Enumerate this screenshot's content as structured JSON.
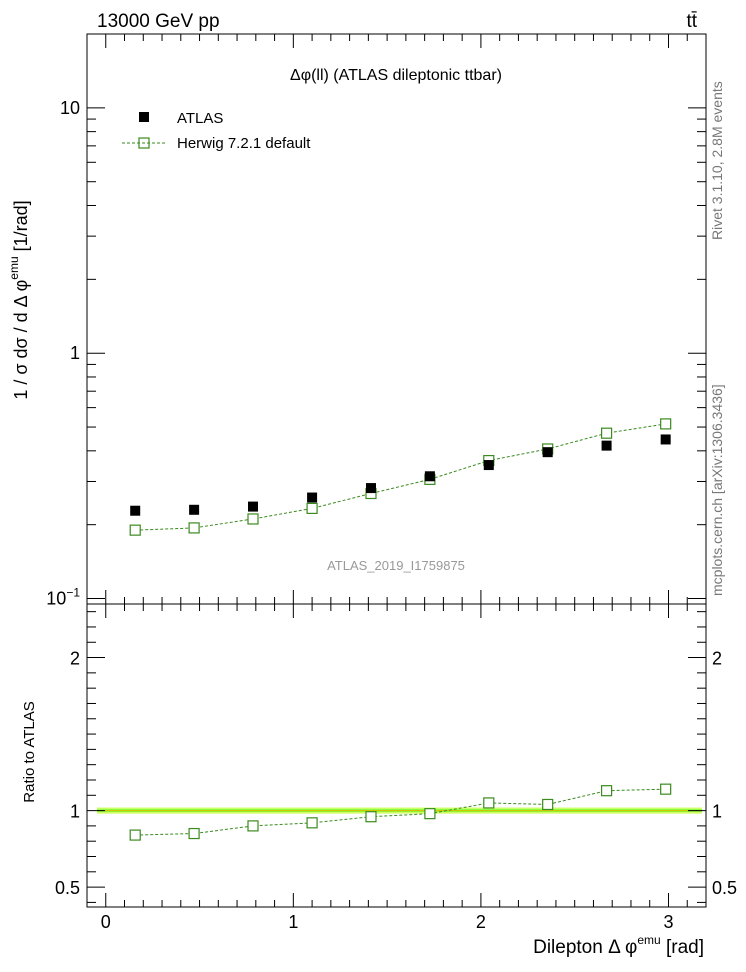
{
  "header": {
    "energy_label": "13000 GeV pp",
    "process_label": "tt̄"
  },
  "side_labels": {
    "rivet": "Rivet 3.1.10, 2.8M events",
    "mcplots": "mcplots.cern.ch [arXiv:1306.3436]"
  },
  "chart_data": [
    {
      "type": "scatter",
      "title": "Δφ(ll) (ATLAS dileptonic ttbar)",
      "watermark": "ATLAS_2019_I1759875",
      "ylabel": {
        "main": "1 / σ  dσ / d Δ φ",
        "sup": "emu",
        "unit": " [1/rad]"
      },
      "yscale": "log",
      "ylim": [
        0.095,
        20
      ],
      "xlim": [
        -0.1,
        3.2
      ],
      "yticks": [
        {
          "value": 0.1,
          "label": "10",
          "sup": "−1"
        },
        {
          "value": 1,
          "label": "1",
          "sup": ""
        },
        {
          "value": 10,
          "label": "10",
          "sup": ""
        }
      ],
      "legend_placement": "top-left",
      "series": [
        {
          "name": "ATLAS",
          "marker": "filled-square",
          "color": "#000000",
          "x": [
            0.157,
            0.471,
            0.785,
            1.1,
            1.414,
            1.728,
            2.042,
            2.356,
            2.67,
            2.985
          ],
          "y": [
            0.228,
            0.23,
            0.237,
            0.258,
            0.282,
            0.315,
            0.35,
            0.395,
            0.42,
            0.445
          ]
        },
        {
          "name": "Herwig 7.2.1 default",
          "marker": "open-square",
          "line": "dashed",
          "color": "#3a8a1e",
          "x": [
            0.157,
            0.471,
            0.785,
            1.1,
            1.414,
            1.728,
            2.042,
            2.356,
            2.67,
            2.985
          ],
          "y": [
            0.19,
            0.194,
            0.211,
            0.233,
            0.268,
            0.306,
            0.365,
            0.407,
            0.472,
            0.515
          ]
        }
      ]
    },
    {
      "type": "scatter",
      "xlabel": {
        "main": "Dilepton Δ φ",
        "sup": "emu",
        "unit": " [rad]"
      },
      "ylabel": "Ratio to ATLAS",
      "ylim": [
        0.37,
        2.35
      ],
      "xlim": [
        -0.1,
        3.2
      ],
      "xticks": [
        0,
        1,
        2,
        3
      ],
      "yticks": [
        {
          "value": 0.5,
          "label": "0.5"
        },
        {
          "value": 1,
          "label": "1"
        },
        {
          "value": 2,
          "label": "2"
        }
      ],
      "reference_band": {
        "color": "#ccff66",
        "inner_color": "#66ff33"
      },
      "series": [
        {
          "name": "Herwig 7.2.1 default",
          "marker": "open-square",
          "line": "dashed",
          "color": "#3a8a1e",
          "x": [
            0.157,
            0.471,
            0.785,
            1.1,
            1.414,
            1.728,
            2.042,
            2.356,
            2.67,
            2.985
          ],
          "y": [
            0.84,
            0.85,
            0.9,
            0.92,
            0.96,
            0.98,
            1.05,
            1.04,
            1.13,
            1.14
          ]
        }
      ]
    }
  ]
}
